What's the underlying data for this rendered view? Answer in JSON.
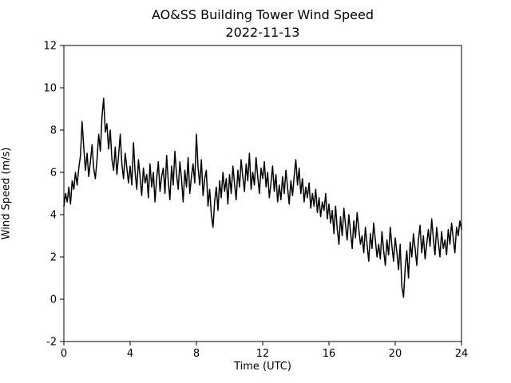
{
  "chart_data": {
    "type": "line",
    "title": "AO&SS Building Tower Wind Speed",
    "subtitle": "2022-11-13",
    "xlabel": "Time (UTC)",
    "ylabel": "Wind Speed (m/s)",
    "xlim": [
      0,
      24
    ],
    "ylim": [
      -2,
      12
    ],
    "x_ticks": [
      0,
      4,
      8,
      12,
      16,
      20,
      24
    ],
    "y_ticks": [
      -2,
      0,
      2,
      4,
      6,
      8,
      10,
      12
    ],
    "line_color": "#000000",
    "grid": false,
    "legend": false,
    "x_start": 0,
    "x_step": 0.1,
    "values": [
      4.4,
      5.0,
      4.6,
      5.3,
      4.5,
      5.6,
      5.2,
      6.0,
      5.4,
      6.2,
      6.8,
      8.4,
      7.2,
      6.1,
      6.9,
      5.8,
      6.5,
      7.3,
      6.2,
      5.7,
      6.6,
      7.8,
      7.0,
      8.6,
      9.5,
      7.9,
      8.3,
      7.1,
      8.0,
      6.6,
      6.1,
      7.2,
      5.9,
      6.8,
      7.8,
      6.4,
      5.7,
      6.9,
      6.2,
      5.5,
      6.3,
      5.4,
      7.4,
      6.0,
      5.2,
      6.6,
      5.8,
      4.9,
      6.2,
      5.5,
      5.9,
      4.8,
      6.4,
      5.3,
      6.0,
      4.6,
      5.7,
      6.5,
      5.1,
      5.8,
      6.2,
      5.0,
      6.8,
      5.6,
      4.7,
      6.3,
      5.4,
      7.0,
      5.9,
      5.2,
      6.5,
      5.7,
      4.6,
      6.1,
      5.3,
      6.7,
      5.0,
      5.8,
      6.4,
      5.5,
      7.8,
      6.2,
      5.4,
      6.6,
      4.9,
      5.7,
      6.1,
      4.4,
      5.2,
      4.0,
      3.4,
      4.6,
      5.3,
      4.2,
      5.6,
      4.8,
      6.0,
      5.1,
      5.7,
      4.5,
      5.9,
      5.0,
      6.3,
      5.5,
      4.7,
      6.1,
      5.3,
      6.6,
      5.8,
      5.1,
      6.4,
      5.6,
      6.9,
      5.2,
      6.0,
      5.4,
      6.7,
      5.8,
      5.0,
      6.2,
      5.7,
      6.5,
      5.3,
      6.0,
      4.8,
      5.5,
      6.3,
      5.1,
      5.9,
      4.6,
      5.4,
      4.7,
      5.8,
      5.0,
      6.1,
      5.3,
      4.5,
      5.6,
      4.9,
      5.8,
      6.6,
      5.4,
      6.2,
      5.0,
      5.7,
      4.6,
      5.3,
      4.8,
      5.5,
      4.3,
      5.0,
      4.4,
      5.2,
      4.1,
      4.8,
      3.9,
      4.6,
      4.2,
      5.0,
      3.8,
      4.5,
      3.6,
      4.2,
      3.1,
      4.4,
      3.3,
      2.6,
      3.9,
      3.0,
      4.3,
      3.5,
      2.8,
      4.0,
      3.2,
      2.4,
      3.7,
      2.9,
      4.1,
      3.3,
      2.6,
      3.0,
      2.2,
      3.4,
      2.6,
      1.8,
      3.1,
      2.4,
      3.6,
      2.8,
      2.0,
      2.6,
      1.9,
      3.2,
      2.3,
      1.6,
      2.8,
      2.1,
      3.4,
      2.5,
      1.8,
      2.9,
      2.2,
      1.4,
      2.6,
      0.6,
      0.1,
      1.5,
      2.3,
      1.0,
      2.7,
      2.0,
      3.1,
      2.4,
      1.6,
      2.8,
      3.5,
      2.2,
      3.0,
      1.9,
      2.6,
      3.3,
      2.5,
      3.8,
      2.9,
      2.1,
      3.4,
      2.7,
      2.0,
      3.2,
      2.4,
      2.8,
      2.1,
      3.3,
      2.6,
      3.6,
      2.9,
      2.2,
      3.4,
      3.0,
      3.7,
      3.3
    ]
  }
}
